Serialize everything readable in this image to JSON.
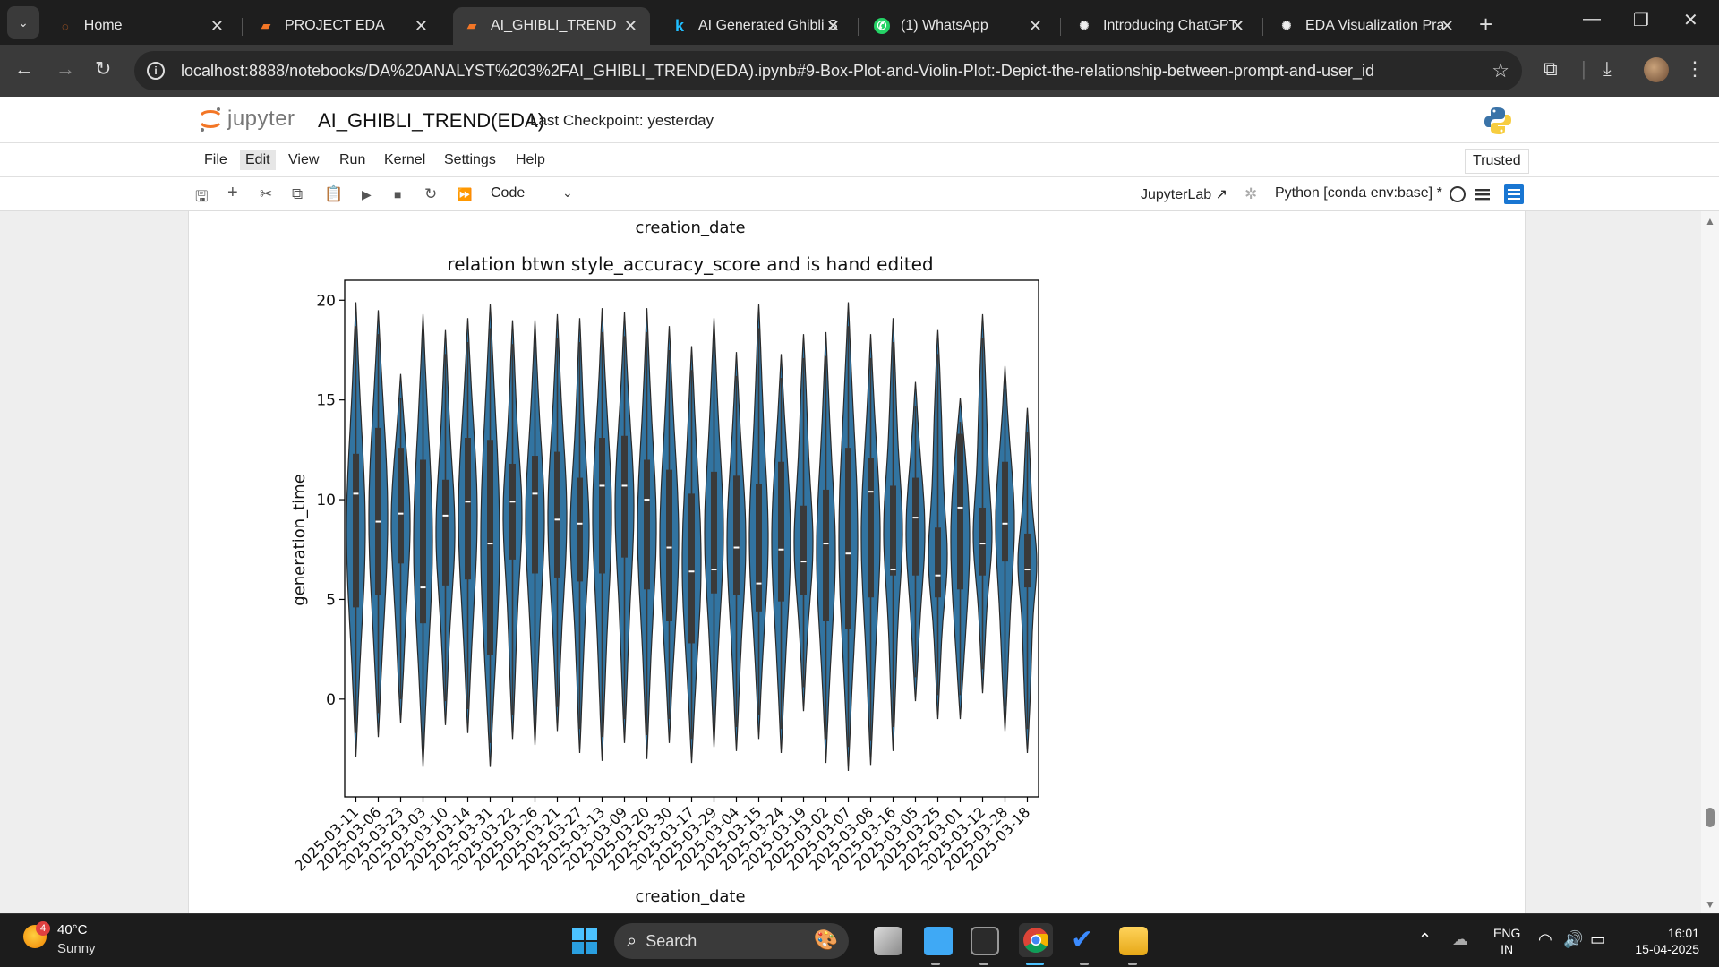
{
  "browser": {
    "tabs": [
      {
        "title": "Home",
        "icon": "jupyter-icon",
        "active": false
      },
      {
        "title": "PROJECT EDA",
        "icon": "notebook-icon",
        "active": false
      },
      {
        "title": "AI_GHIBLI_TREND(ED",
        "icon": "notebook-icon",
        "active": true
      },
      {
        "title": "AI Generated Ghibli S",
        "icon": "kaggle-icon",
        "active": false
      },
      {
        "title": "(1) WhatsApp",
        "icon": "whatsapp-icon",
        "active": false
      },
      {
        "title": "Introducing ChatGPT",
        "icon": "openai-icon",
        "active": false
      },
      {
        "title": "EDA Visualization Pra",
        "icon": "openai-icon",
        "active": false
      }
    ],
    "url": "localhost:8888/notebooks/DA%20ANALYST%203%2FAI_GHIBLI_TREND(EDA).ipynb#9-Box-Plot-and-Violin-Plot:-Depict-the-relationship-between-prompt-and-user_id"
  },
  "jupyter": {
    "logo_text": "jupyter",
    "notebook_title": "AI_GHIBLI_TREND(EDA)",
    "checkpoint": "Last Checkpoint: yesterday",
    "menu": [
      "File",
      "Edit",
      "View",
      "Run",
      "Kernel",
      "Settings",
      "Help"
    ],
    "trusted": "Trusted",
    "cell_type": "Code",
    "jupyterlab_link": "JupyterLab",
    "kernel": "Python [conda env:base] *"
  },
  "output": {
    "prev_xlabel": "creation_date"
  },
  "chart_data": {
    "type": "violin",
    "title": "relation btwn style_accuracy_score and is hand edited",
    "xlabel": "creation_date",
    "ylabel": "generation_time",
    "yticks": [
      0,
      5,
      10,
      15,
      20
    ],
    "ylim": [
      -4.9,
      21.0
    ],
    "color": "#3274a1",
    "categories": [
      "2025-03-11",
      "2025-03-06",
      "2025-03-23",
      "2025-03-03",
      "2025-03-10",
      "2025-03-14",
      "2025-03-31",
      "2025-03-22",
      "2025-03-26",
      "2025-03-21",
      "2025-03-27",
      "2025-03-13",
      "2025-03-09",
      "2025-03-20",
      "2025-03-30",
      "2025-03-17",
      "2025-03-29",
      "2025-03-04",
      "2025-03-15",
      "2025-03-24",
      "2025-03-19",
      "2025-03-02",
      "2025-03-07",
      "2025-03-08",
      "2025-03-16",
      "2025-03-05",
      "2025-03-25",
      "2025-03-01",
      "2025-03-12",
      "2025-03-28",
      "2025-03-18"
    ],
    "medians": [
      10.3,
      8.9,
      9.3,
      5.6,
      9.2,
      9.9,
      7.8,
      9.9,
      10.3,
      9.0,
      8.8,
      10.7,
      10.7,
      10.0,
      7.6,
      6.4,
      6.5,
      7.6,
      5.8,
      7.5,
      6.9,
      7.8,
      7.3,
      10.4,
      6.5,
      9.1,
      6.2,
      9.6,
      7.8,
      8.8,
      6.5
    ],
    "q1": [
      4.6,
      5.2,
      6.8,
      3.8,
      5.7,
      6.0,
      2.2,
      7.0,
      6.3,
      6.1,
      5.9,
      6.3,
      7.1,
      5.5,
      3.9,
      2.8,
      5.3,
      5.2,
      4.4,
      4.9,
      5.2,
      3.9,
      3.5,
      5.1,
      6.2,
      6.2,
      5.1,
      5.5,
      6.2,
      6.9,
      5.6
    ],
    "q3": [
      12.3,
      13.6,
      12.6,
      12.0,
      11.0,
      13.1,
      13.0,
      11.8,
      12.2,
      12.4,
      11.1,
      13.1,
      13.2,
      12.0,
      11.5,
      10.3,
      11.4,
      11.2,
      10.8,
      11.9,
      9.7,
      10.5,
      12.6,
      12.1,
      10.7,
      11.1,
      8.6,
      13.3,
      9.6,
      11.9,
      8.3
    ],
    "mins": [
      -2.9,
      -1.9,
      -1.2,
      -3.4,
      -1.3,
      -1.7,
      -3.4,
      -2.0,
      -2.3,
      -1.6,
      -2.7,
      -3.1,
      -2.2,
      -3.0,
      -2.2,
      -3.2,
      -2.4,
      -2.6,
      -2.0,
      -2.7,
      -0.6,
      -3.2,
      -3.6,
      -3.3,
      -2.6,
      -0.1,
      -1.0,
      -1.0,
      0.3,
      -1.6,
      -2.7
    ],
    "maxs": [
      19.9,
      19.5,
      16.3,
      19.3,
      18.5,
      19.1,
      19.8,
      19.0,
      19.0,
      19.3,
      19.1,
      19.6,
      19.4,
      19.6,
      18.7,
      17.7,
      19.1,
      17.4,
      19.8,
      17.3,
      18.3,
      18.4,
      19.9,
      18.3,
      19.1,
      15.9,
      18.5,
      15.1,
      19.3,
      16.7,
      14.6
    ]
  },
  "taskbar": {
    "weather_badge": "4",
    "temperature": "40°C",
    "condition": "Sunny",
    "search_label": "Search",
    "language_1": "ENG",
    "language_2": "IN",
    "time": "16:01",
    "date": "15-04-2025"
  }
}
